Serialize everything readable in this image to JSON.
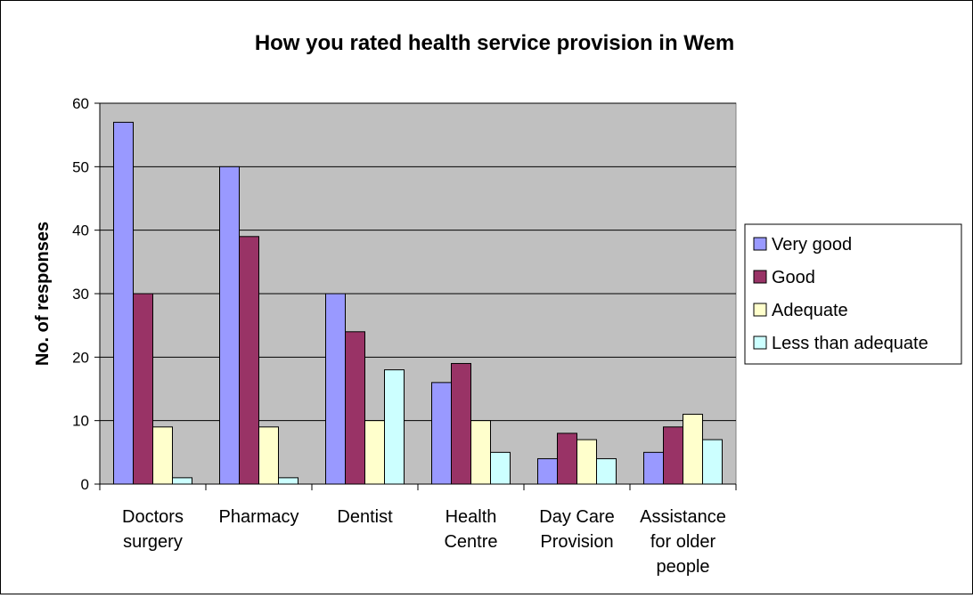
{
  "chart_data": {
    "type": "bar",
    "title": "How you rated health service provision in Wem",
    "xlabel": "",
    "ylabel": "No. of responses",
    "ylim": [
      0,
      60
    ],
    "yticks": [
      0,
      10,
      20,
      30,
      40,
      50,
      60
    ],
    "grid": true,
    "legend_position": "right",
    "categories": [
      [
        "Doctors",
        "surgery"
      ],
      [
        "Pharmacy"
      ],
      [
        "Dentist"
      ],
      [
        "Health",
        "Centre"
      ],
      [
        "Day Care",
        "Provision"
      ],
      [
        "Assistance",
        "for older",
        "people"
      ]
    ],
    "series": [
      {
        "name": "Very good",
        "color": "#9999ff",
        "values": [
          57,
          50,
          30,
          16,
          4,
          5
        ]
      },
      {
        "name": "Good",
        "color": "#993366",
        "values": [
          30,
          39,
          24,
          19,
          8,
          9
        ]
      },
      {
        "name": "Adequate",
        "color": "#ffffcc",
        "values": [
          9,
          9,
          10,
          10,
          7,
          11
        ]
      },
      {
        "name": "Less than adequate",
        "color": "#ccffff",
        "values": [
          1,
          1,
          18,
          5,
          4,
          7
        ]
      }
    ],
    "plot_background": "#c0c0c0"
  }
}
